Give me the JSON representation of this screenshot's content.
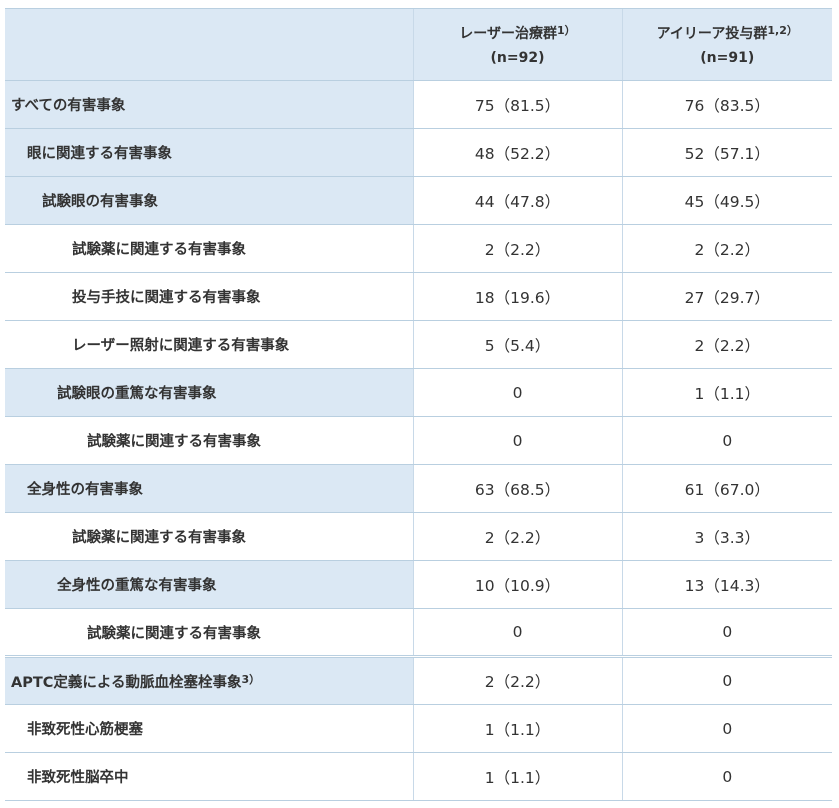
{
  "header": {
    "col1_title": "レーザー治療群",
    "col1_sup": "1）",
    "col1_n": "(n=92)",
    "col2_title": "アイリーア投与群",
    "col2_sup": "1,2）",
    "col2_n": "(n=91)"
  },
  "rows": [
    {
      "label": "すべての有害事象",
      "sup": "",
      "laser": "75（81.5）",
      "eylea": "76（83.5）"
    },
    {
      "label": "眼に関連する有害事象",
      "sup": "",
      "laser": "48（52.2）",
      "eylea": "52（57.1）"
    },
    {
      "label": "試験眼の有害事象",
      "sup": "",
      "laser": "44（47.8）",
      "eylea": "45（49.5）"
    },
    {
      "label": "試験薬に関連する有害事象",
      "sup": "",
      "laser": "2（2.2）",
      "eylea": "2（2.2）"
    },
    {
      "label": "投与手技に関連する有害事象",
      "sup": "",
      "laser": "18（19.6）",
      "eylea": "27（29.7）"
    },
    {
      "label": "レーザー照射に関連する有害事象",
      "sup": "",
      "laser": "5（5.4）",
      "eylea": "2（2.2）"
    },
    {
      "label": "試験眼の重篤な有害事象",
      "sup": "",
      "laser": "0",
      "eylea": "1（1.1）"
    },
    {
      "label": "試験薬に関連する有害事象",
      "sup": "",
      "laser": "0",
      "eylea": "0"
    },
    {
      "label": "全身性の有害事象",
      "sup": "",
      "laser": "63（68.5）",
      "eylea": "61（67.0）"
    },
    {
      "label": "試験薬に関連する有害事象",
      "sup": "",
      "laser": "2（2.2）",
      "eylea": "3（3.3）"
    },
    {
      "label": "全身性の重篤な有害事象",
      "sup": "",
      "laser": "10（10.9）",
      "eylea": "13（14.3）"
    },
    {
      "label": "試験薬に関連する有害事象",
      "sup": "",
      "laser": "0",
      "eylea": "0"
    },
    {
      "label": "APTC定義による動脈血栓塞栓事象",
      "sup": "3）",
      "laser": "2（2.2）",
      "eylea": "0"
    },
    {
      "label": "非致死性心筋梗塞",
      "sup": "",
      "laser": "1（1.1）",
      "eylea": "0"
    },
    {
      "label": "非致死性脳卒中",
      "sup": "",
      "laser": "1（1.1）",
      "eylea": "0"
    }
  ],
  "colors": {
    "header_bg": "#dbe8f4",
    "label_bg": "#dbe8f4",
    "border": "#b9cfe0",
    "text": "#333333"
  }
}
